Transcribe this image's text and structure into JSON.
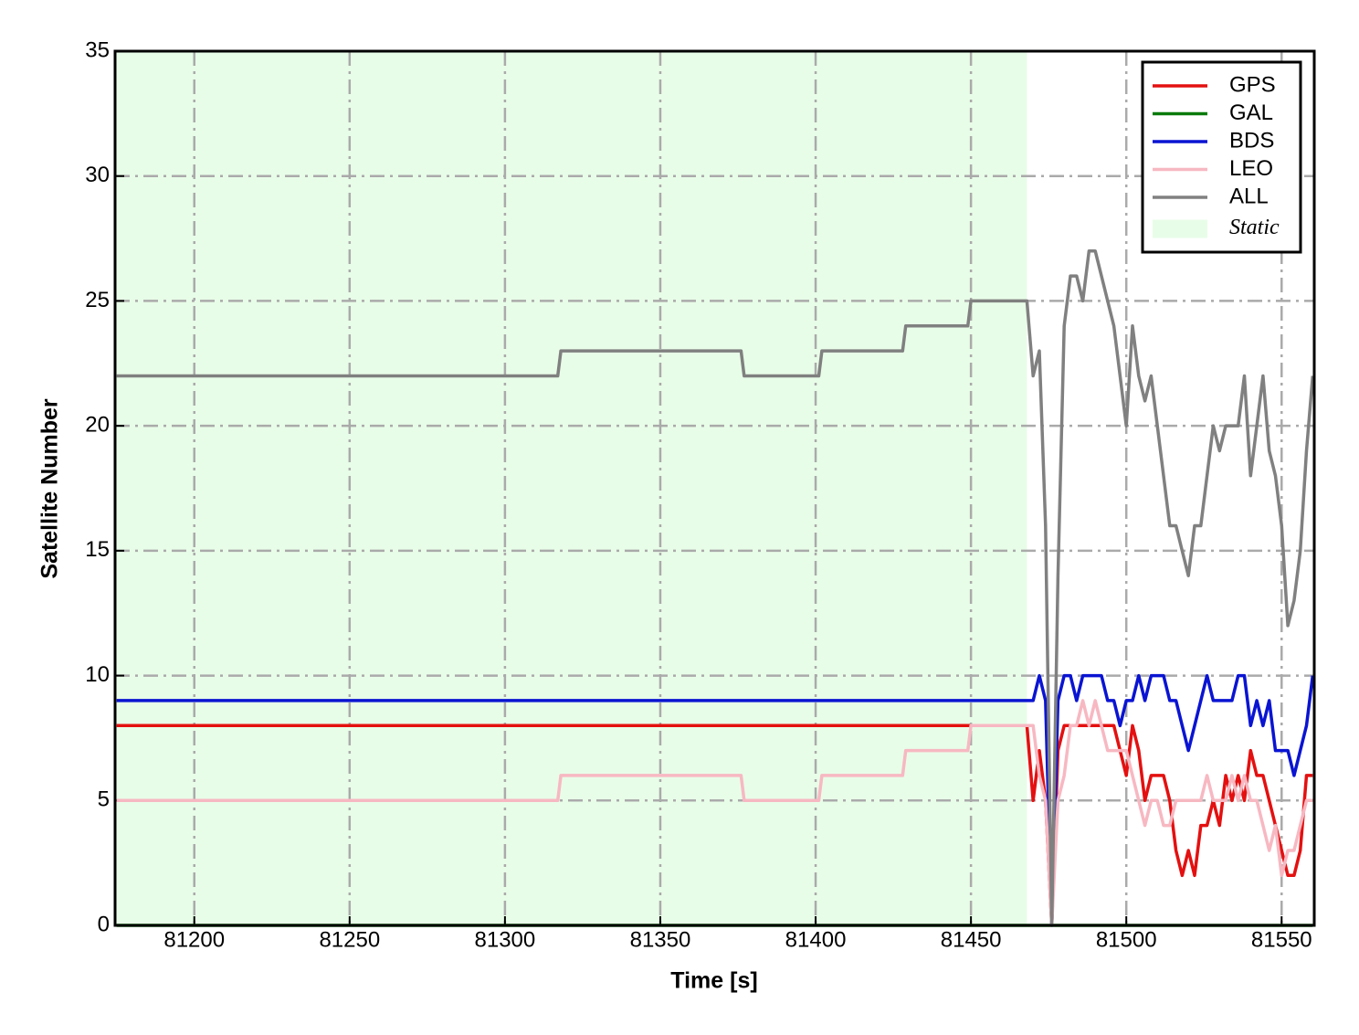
{
  "chart_data": {
    "type": "line",
    "x_label": "Time [s]",
    "y_label": "Satellite Number",
    "x": [
      81175,
      81317,
      81318,
      81376,
      81377,
      81401,
      81402,
      81428,
      81429,
      81449,
      81450,
      81468,
      81470,
      81472,
      81474,
      81476,
      81478,
      81480,
      81482,
      81484,
      81486,
      81488,
      81490,
      81492,
      81494,
      81496,
      81498,
      81500,
      81502,
      81504,
      81506,
      81508,
      81510,
      81512,
      81514,
      81516,
      81518,
      81520,
      81522,
      81524,
      81526,
      81528,
      81530,
      81532,
      81534,
      81536,
      81538,
      81540,
      81542,
      81544,
      81546,
      81548,
      81550,
      81552,
      81554,
      81556,
      81558,
      81560
    ],
    "series": [
      {
        "name": "GPS",
        "color": "#e41010",
        "values": [
          8,
          8,
          8,
          8,
          8,
          8,
          8,
          8,
          8,
          8,
          8,
          8,
          5,
          7,
          5,
          0,
          7,
          8,
          8,
          8,
          8,
          8,
          8,
          8,
          8,
          8,
          7,
          6,
          8,
          7,
          5,
          6,
          6,
          6,
          5,
          3,
          2,
          3,
          2,
          4,
          4,
          5,
          4,
          6,
          5,
          6,
          5,
          7,
          6,
          6,
          5,
          4,
          3,
          2,
          2,
          3,
          6,
          6
        ]
      },
      {
        "name": "GAL",
        "color": "#0a7a0a",
        "values": [
          0,
          0,
          0,
          0,
          0,
          0,
          0,
          0,
          0,
          0,
          0,
          0,
          0,
          0,
          0,
          0,
          0,
          0,
          0,
          0,
          0,
          0,
          0,
          0,
          0,
          0,
          0,
          0,
          0,
          0,
          0,
          0,
          0,
          0,
          0,
          0,
          0,
          0,
          0,
          0,
          0,
          0,
          0,
          0,
          0,
          0,
          0,
          0,
          0,
          0,
          0,
          0,
          0,
          0,
          0,
          0,
          0,
          0
        ]
      },
      {
        "name": "BDS",
        "color": "#0a14d2",
        "values": [
          9,
          9,
          9,
          9,
          9,
          9,
          9,
          9,
          9,
          9,
          9,
          9,
          9,
          10,
          9,
          0,
          9,
          10,
          10,
          9,
          10,
          10,
          10,
          10,
          9,
          9,
          8,
          9,
          9,
          10,
          9,
          10,
          10,
          10,
          9,
          9,
          8,
          7,
          8,
          9,
          10,
          9,
          9,
          9,
          9,
          10,
          10,
          8,
          9,
          8,
          9,
          7,
          7,
          7,
          6,
          7,
          8,
          10
        ]
      },
      {
        "name": "LEO",
        "color": "#f7b8c2",
        "values": [
          5,
          5,
          6,
          6,
          5,
          5,
          6,
          6,
          7,
          7,
          8,
          8,
          8,
          6,
          5,
          0,
          5,
          6,
          8,
          8,
          9,
          8,
          9,
          8,
          7,
          7,
          7,
          7,
          6,
          5,
          4,
          5,
          5,
          4,
          4,
          5,
          5,
          5,
          5,
          5,
          6,
          5,
          5,
          5,
          6,
          5,
          6,
          5,
          5,
          4,
          3,
          4,
          2,
          3,
          3,
          4,
          5,
          5
        ]
      },
      {
        "name": "ALL",
        "color": "#808080",
        "values": [
          22,
          22,
          23,
          23,
          22,
          22,
          23,
          23,
          24,
          24,
          25,
          25,
          22,
          23,
          16,
          0,
          14,
          24,
          26,
          26,
          25,
          27,
          27,
          26,
          25,
          24,
          22,
          20,
          24,
          22,
          21,
          22,
          20,
          18,
          16,
          16,
          15,
          14,
          16,
          16,
          18,
          20,
          19,
          20,
          20,
          20,
          22,
          18,
          20,
          22,
          19,
          18,
          16,
          12,
          13,
          15,
          19,
          22
        ]
      }
    ],
    "shaded_regions": [
      {
        "name": "Static",
        "color": "#e8fde8",
        "x": [
          81174.5,
          81468
        ]
      }
    ],
    "xlim": [
      81174.5,
      81560.5
    ],
    "ylim": [
      0,
      35
    ],
    "xticks": [
      81200,
      81250,
      81300,
      81350,
      81400,
      81450,
      81500,
      81550
    ],
    "yticks": [
      0,
      5,
      10,
      15,
      20,
      25,
      30,
      35
    ],
    "grid": true,
    "legend": "upper right"
  }
}
